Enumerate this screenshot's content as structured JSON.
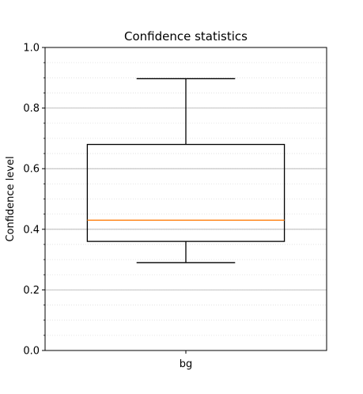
{
  "chart_data": {
    "type": "box",
    "title": "Confidence statistics",
    "xlabel": "",
    "ylabel": "Confidence level",
    "categories": [
      "bg"
    ],
    "ylim": [
      0.0,
      1.0
    ],
    "yticks": [
      0.0,
      0.2,
      0.4,
      0.6,
      0.8,
      1.0
    ],
    "ytick_labels": [
      "0.0",
      "0.2",
      "0.4",
      "0.6",
      "0.8",
      "1.0"
    ],
    "minor_step": 0.05,
    "grid": {
      "major": true,
      "minor": true
    },
    "boxes": [
      {
        "category": "bg",
        "whisker_low": 0.29,
        "q1": 0.36,
        "median": 0.43,
        "q3": 0.68,
        "whisker_high": 0.897
      }
    ],
    "colors": {
      "box": "#000000",
      "median": "#ff7f0e",
      "major_grid": "#b0b0b0",
      "minor_grid": "#dddddd"
    }
  }
}
